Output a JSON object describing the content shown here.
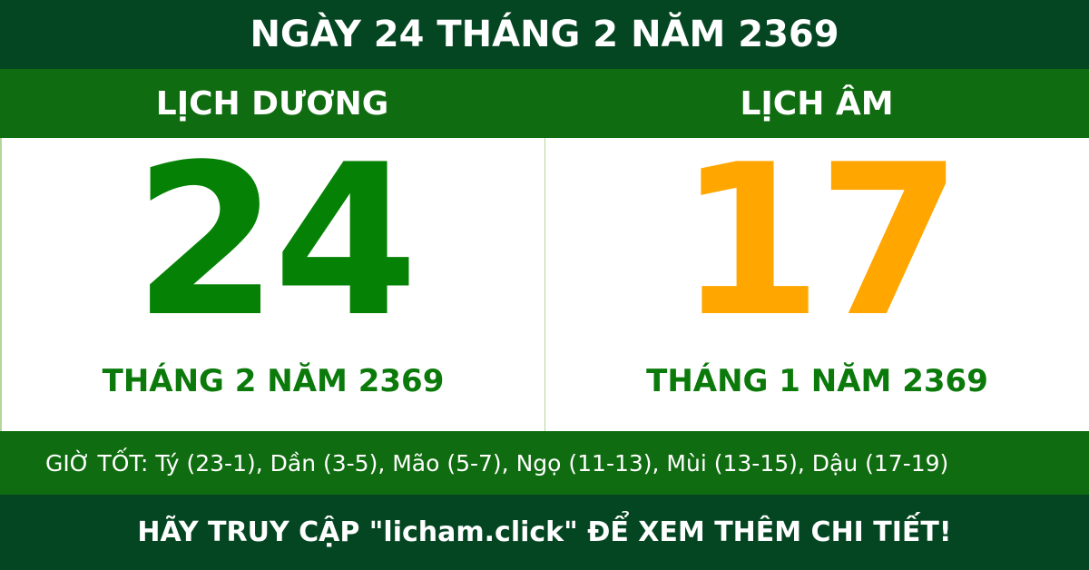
{
  "title": "NGÀY 24 THÁNG 2 NĂM 2369",
  "solar": {
    "label": "LỊCH DƯƠNG",
    "day": "24",
    "month_year": "THÁNG 2 NĂM 2369"
  },
  "lunar": {
    "label": "LỊCH ÂM",
    "day": "17",
    "month_year": "THÁNG 1 NĂM 2369"
  },
  "good_hours": "GIỜ TỐT: Tý (23-1), Dần (3-5), Mão (5-7), Ngọ (11-13), Mùi (13-15), Dậu (17-19)",
  "footer": "HÃY TRUY CẬP \"licham.click\" ĐỂ XEM THÊM CHI TIẾT!",
  "colors": {
    "dark_green": "#054622",
    "band_green": "#106c10",
    "solar_day": "#058205",
    "lunar_day": "#ffa600"
  }
}
